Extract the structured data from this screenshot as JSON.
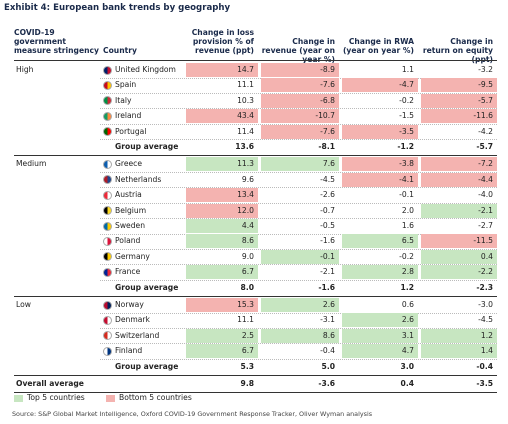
{
  "title": "Exhibit 4: European bank trends by geography",
  "header": [
    "COVID-19 government measure stringency",
    "Country",
    "Change in loss provision % of revenue (ppt)",
    "Change in revenue (year on year %)",
    "Change in RWA (year on year %)",
    "Change in return on equity (ppt)"
  ],
  "groups": [
    {
      "label": "High",
      "rows": [
        {
          "country": "United Kingdom",
          "values": [
            "14.7",
            "-8.9",
            "1.1",
            "-3.2"
          ],
          "fills": [
            "#f4b3b0",
            "#f4b3b0",
            null,
            null
          ]
        },
        {
          "country": "Spain",
          "values": [
            "11.1",
            "-7.6",
            "-4.7",
            "-9.5"
          ],
          "fills": [
            null,
            "#f4b3b0",
            "#f4b3b0",
            "#f4b3b0"
          ]
        },
        {
          "country": "Italy",
          "values": [
            "10.3",
            "-6.8",
            "-0.2",
            "-5.7"
          ],
          "fills": [
            null,
            "#f4b3b0",
            null,
            "#f4b3b0"
          ]
        },
        {
          "country": "Ireland",
          "values": [
            "43.4",
            "-10.7",
            "-1.5",
            "-11.6"
          ],
          "fills": [
            "#f4b3b0",
            "#f4b3b0",
            null,
            "#f4b3b0"
          ]
        },
        {
          "country": "Portugal",
          "values": [
            "11.4",
            "-7.6",
            "-3.5",
            "-4.2"
          ],
          "fills": [
            null,
            "#f4b3b0",
            "#f4b3b0",
            null
          ]
        }
      ],
      "average": {
        "label": "Group average",
        "values": [
          "13.6",
          "-8.1",
          "-1.2",
          "-5.7"
        ]
      }
    },
    {
      "label": "Medium",
      "rows": [
        {
          "country": "Greece",
          "values": [
            "11.3",
            "7.6",
            "-3.8",
            "-7.2"
          ],
          "fills": [
            "#c7e6c1",
            "#c7e6c1",
            "#f4b3b0",
            "#f4b3b0"
          ]
        },
        {
          "country": "Netherlands",
          "values": [
            "9.6",
            "-4.5",
            "-4.1",
            "-4.4"
          ],
          "fills": [
            null,
            null,
            "#f4b3b0",
            "#f4b3b0"
          ]
        },
        {
          "country": "Austria",
          "values": [
            "13.4",
            "-2.6",
            "-0.1",
            "-4.0"
          ],
          "fills": [
            "#f4b3b0",
            null,
            null,
            null
          ]
        },
        {
          "country": "Belgium",
          "values": [
            "12.0",
            "-0.7",
            "2.0",
            "-2.1"
          ],
          "fills": [
            "#f4b3b0",
            null,
            null,
            "#c7e6c1"
          ]
        },
        {
          "country": "Sweden",
          "values": [
            "4.4",
            "-0.5",
            "1.6",
            "-2.7"
          ],
          "fills": [
            "#c7e6c1",
            null,
            null,
            null
          ]
        },
        {
          "country": "Poland",
          "values": [
            "8.6",
            "-1.6",
            "6.5",
            "-11.5"
          ],
          "fills": [
            "#c7e6c1",
            null,
            "#c7e6c1",
            "#f4b3b0"
          ]
        },
        {
          "country": "Germany",
          "values": [
            "9.0",
            "-0.1",
            "-0.2",
            "0.4"
          ],
          "fills": [
            null,
            "#c7e6c1",
            null,
            "#c7e6c1"
          ]
        },
        {
          "country": "France",
          "values": [
            "6.7",
            "-2.1",
            "2.8",
            "-2.2"
          ],
          "fills": [
            "#c7e6c1",
            null,
            "#c7e6c1",
            "#c7e6c1"
          ]
        }
      ],
      "average": {
        "label": "Group average",
        "values": [
          "8.0",
          "-1.6",
          "1.2",
          "-2.3"
        ]
      }
    },
    {
      "label": "Low",
      "rows": [
        {
          "country": "Norway",
          "values": [
            "15.3",
            "2.6",
            "0.6",
            "-3.0"
          ],
          "fills": [
            "#f4b3b0",
            "#c7e6c1",
            null,
            null
          ]
        },
        {
          "country": "Denmark",
          "values": [
            "11.1",
            "-3.1",
            "2.6",
            "-4.5"
          ],
          "fills": [
            null,
            null,
            "#c7e6c1",
            null
          ]
        },
        {
          "country": "Switzerland",
          "values": [
            "2.5",
            "8.6",
            "3.1",
            "1.2"
          ],
          "fills": [
            "#c7e6c1",
            "#c7e6c1",
            "#c7e6c1",
            "#c7e6c1"
          ]
        },
        {
          "country": "Finland",
          "values": [
            "6.7",
            "-0.4",
            "4.7",
            "1.4"
          ],
          "fills": [
            "#c7e6c1",
            null,
            "#c7e6c1",
            "#c7e6c1"
          ]
        }
      ],
      "average": {
        "label": "Group average",
        "values": [
          "5.3",
          "5.0",
          "3.0",
          "-0.4"
        ]
      }
    }
  ],
  "overall": {
    "label": "Overall average",
    "values": [
      "9.8",
      "-3.6",
      "0.4",
      "-3.5"
    ]
  },
  "legend": [
    {
      "label": "Top 5 countries",
      "color": "#c7e6c1"
    },
    {
      "label": "Bottom 5 countries",
      "color": "#f4b3b0"
    }
  ],
  "source": "Source: S&P Global Market Intelligence, Oxford COVID-19 Government Response Tracker, Oliver Wyman analysis"
}
